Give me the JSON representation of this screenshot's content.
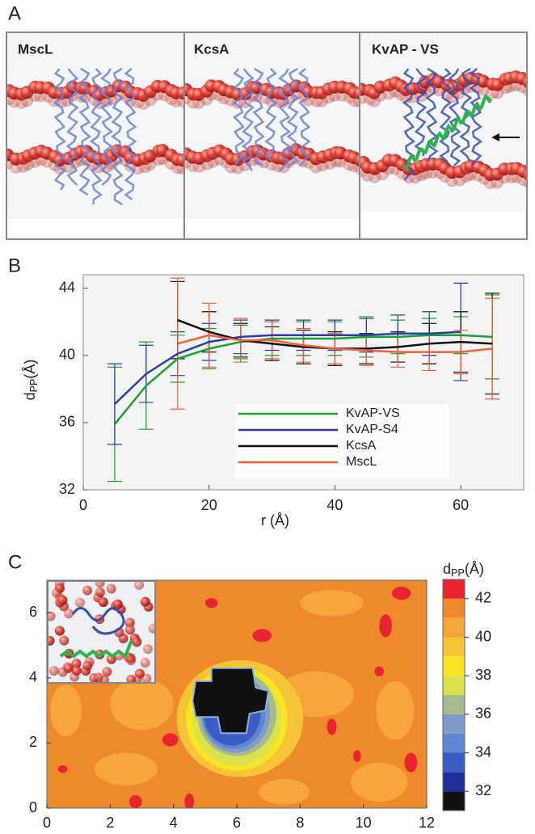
{
  "panel_a": {
    "label": "A",
    "titles": [
      "MscL",
      "KcsA",
      "KvAP - VS"
    ]
  },
  "chart_data": [
    {
      "type": "line",
      "label": "B",
      "xlabel": "r (Å)",
      "ylabel": {
        "symbol": "d",
        "subscript": "PP",
        "unit": "(Å)"
      },
      "x": [
        5,
        10,
        15,
        20,
        25,
        30,
        35,
        40,
        45,
        50,
        55,
        60,
        65
      ],
      "series": [
        {
          "name": "KvAP-VS",
          "color": "#1aa033",
          "values": [
            35.9,
            38.2,
            39.8,
            40.4,
            40.8,
            41.0,
            41.0,
            41.0,
            41.1,
            41.1,
            41.2,
            41.2,
            41.1
          ],
          "errors": [
            3.4,
            2.6,
            1.4,
            1.2,
            1.0,
            1.0,
            1.0,
            1.0,
            1.2,
            1.0,
            1.0,
            1.1,
            2.5
          ]
        },
        {
          "name": "KvAP-S4",
          "color": "#2a3fa8",
          "values": [
            37.1,
            38.9,
            40.1,
            40.8,
            41.1,
            41.2,
            41.2,
            41.2,
            41.2,
            41.3,
            41.3,
            41.4,
            null
          ],
          "errors": [
            2.4,
            1.7,
            1.3,
            1.1,
            1.0,
            0.9,
            0.9,
            0.9,
            1.0,
            1.1,
            1.3,
            2.9,
            null
          ]
        },
        {
          "name": "KcsA",
          "color": "#111111",
          "values": [
            null,
            null,
            42.1,
            41.4,
            40.9,
            40.7,
            40.5,
            40.4,
            40.4,
            40.5,
            40.7,
            40.8,
            40.7
          ],
          "errors": [
            null,
            null,
            2.3,
            1.2,
            1.0,
            1.0,
            1.0,
            1.0,
            0.9,
            0.9,
            1.2,
            1.8,
            3.0
          ]
        },
        {
          "name": "MscL",
          "color": "#f0603a",
          "values": [
            null,
            null,
            40.7,
            41.2,
            40.9,
            40.9,
            40.6,
            40.4,
            40.3,
            40.2,
            40.2,
            40.2,
            40.4
          ],
          "errors": [
            null,
            null,
            3.9,
            1.9,
            1.3,
            1.1,
            1.0,
            0.9,
            0.9,
            0.9,
            1.1,
            1.3,
            3.0
          ]
        }
      ],
      "xlim": [
        0,
        70
      ],
      "ylim": [
        32,
        44.8
      ],
      "xticks": [
        0,
        20,
        40,
        60
      ],
      "yticks": [
        32,
        36,
        40,
        44
      ],
      "legend": "lower right",
      "background": "#f3f3f3"
    },
    {
      "type": "contour",
      "label": "C",
      "xlim": [
        0,
        12
      ],
      "ylim": [
        0,
        7
      ],
      "xticks": [
        0,
        2,
        4,
        6,
        8,
        10,
        12
      ],
      "yticks": [
        0,
        2,
        4,
        6
      ],
      "colorbar": {
        "label": {
          "symbol": "d",
          "subscript": "PP",
          "unit": "(Å)"
        },
        "levels": [
          31,
          32,
          33,
          34,
          35,
          36,
          37,
          38,
          39,
          40,
          41,
          42,
          43
        ],
        "colors": [
          "#111111",
          "#1f2f9a",
          "#3a5cc4",
          "#5f86d2",
          "#7f9cc8",
          "#a9b98e",
          "#d9e24a",
          "#f7e524",
          "#f8c437",
          "#f5a53a",
          "#ee8a2c",
          "#e82430"
        ],
        "ticks": [
          32,
          34,
          36,
          38,
          40,
          42
        ]
      }
    }
  ]
}
